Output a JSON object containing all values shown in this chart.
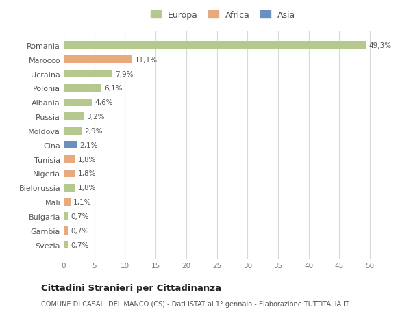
{
  "countries": [
    "Romania",
    "Marocco",
    "Ucraina",
    "Polonia",
    "Albania",
    "Russia",
    "Moldova",
    "Cina",
    "Tunisia",
    "Nigeria",
    "Bielorussia",
    "Mali",
    "Bulgaria",
    "Gambia",
    "Svezia"
  ],
  "values": [
    49.3,
    11.1,
    7.9,
    6.1,
    4.6,
    3.2,
    2.9,
    2.1,
    1.8,
    1.8,
    1.8,
    1.1,
    0.7,
    0.7,
    0.7
  ],
  "labels": [
    "49,3%",
    "11,1%",
    "7,9%",
    "6,1%",
    "4,6%",
    "3,2%",
    "2,9%",
    "2,1%",
    "1,8%",
    "1,8%",
    "1,8%",
    "1,1%",
    "0,7%",
    "0,7%",
    "0,7%"
  ],
  "continents": [
    "Europa",
    "Africa",
    "Europa",
    "Europa",
    "Europa",
    "Europa",
    "Europa",
    "Asia",
    "Africa",
    "Africa",
    "Europa",
    "Africa",
    "Europa",
    "Africa",
    "Europa"
  ],
  "colors": {
    "Europa": "#b5c98e",
    "Africa": "#e8a97c",
    "Asia": "#6b90c0"
  },
  "xlim": [
    0,
    52
  ],
  "xticks": [
    0,
    5,
    10,
    15,
    20,
    25,
    30,
    35,
    40,
    45,
    50
  ],
  "title": "Cittadini Stranieri per Cittadinanza",
  "subtitle": "COMUNE DI CASALI DEL MANCO (CS) - Dati ISTAT al 1° gennaio - Elaborazione TUTTITALIA.IT",
  "background_color": "#ffffff",
  "plot_background": "#ffffff",
  "grid_color": "#d8d8d8"
}
